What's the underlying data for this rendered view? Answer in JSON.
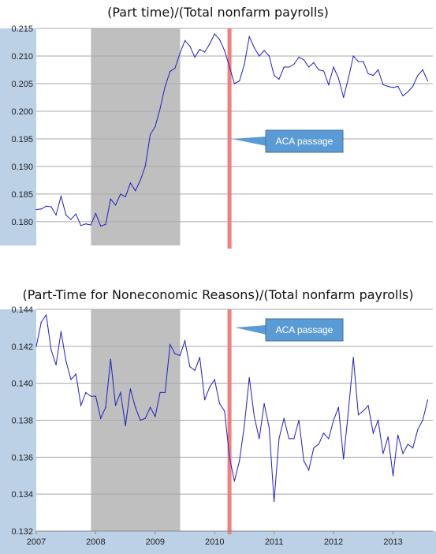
{
  "chart_data": [
    {
      "type": "line",
      "title": "(Part time)/(Total nonfarm payrolls)",
      "xlim": [
        2007.0,
        2013.67
      ],
      "ylim": [
        0.1757,
        0.215
      ],
      "yticks": [
        0.215,
        0.21,
        0.205,
        0.2,
        0.195,
        0.19,
        0.185,
        0.18
      ],
      "ytick_labels": [
        "0.215",
        "0.210",
        "0.205",
        "0.200",
        "0.195",
        "0.190",
        "0.185",
        "0.180"
      ],
      "grid": true,
      "recession_shading": [
        2007.92,
        2009.42
      ],
      "vline": 2010.25,
      "annotation": "ACA passage",
      "line_color": "#1f1fbf",
      "shade_color": "#bfbfbf",
      "vline_color": "#f08080",
      "x": [
        2007.0,
        2007.083,
        2007.167,
        2007.25,
        2007.333,
        2007.417,
        2007.5,
        2007.583,
        2007.667,
        2007.75,
        2007.833,
        2007.917,
        2008.0,
        2008.083,
        2008.167,
        2008.25,
        2008.333,
        2008.417,
        2008.5,
        2008.583,
        2008.667,
        2008.75,
        2008.833,
        2008.917,
        2009.0,
        2009.083,
        2009.167,
        2009.25,
        2009.333,
        2009.417,
        2009.5,
        2009.583,
        2009.667,
        2009.75,
        2009.833,
        2009.917,
        2010.0,
        2010.083,
        2010.167,
        2010.25,
        2010.333,
        2010.417,
        2010.5,
        2010.583,
        2010.667,
        2010.75,
        2010.833,
        2010.917,
        2011.0,
        2011.083,
        2011.167,
        2011.25,
        2011.333,
        2011.417,
        2011.5,
        2011.583,
        2011.667,
        2011.75,
        2011.833,
        2011.917,
        2012.0,
        2012.083,
        2012.167,
        2012.25,
        2012.333,
        2012.417,
        2012.5,
        2012.583,
        2012.667,
        2012.75,
        2012.833,
        2012.917,
        2013.0,
        2013.083,
        2013.167,
        2013.25,
        2013.333,
        2013.417,
        2013.5,
        2013.583
      ],
      "y": [
        0.1822,
        0.1823,
        0.1828,
        0.1827,
        0.1812,
        0.1846,
        0.1812,
        0.1804,
        0.1814,
        0.1793,
        0.1796,
        0.1794,
        0.1815,
        0.1792,
        0.1795,
        0.1841,
        0.183,
        0.185,
        0.1845,
        0.187,
        0.1856,
        0.1875,
        0.19,
        0.1958,
        0.1972,
        0.2005,
        0.2045,
        0.2072,
        0.2078,
        0.2105,
        0.2128,
        0.2118,
        0.2098,
        0.2112,
        0.2107,
        0.2122,
        0.214,
        0.213,
        0.211,
        0.208,
        0.205,
        0.2055,
        0.2085,
        0.2135,
        0.2115,
        0.21,
        0.211,
        0.21,
        0.2065,
        0.2058,
        0.208,
        0.208,
        0.2085,
        0.2098,
        0.2093,
        0.208,
        0.2088,
        0.2075,
        0.2073,
        0.2048,
        0.208,
        0.206,
        0.2025,
        0.206,
        0.21,
        0.209,
        0.209,
        0.2068,
        0.2065,
        0.2075,
        0.2048,
        0.2045,
        0.2043,
        0.2045,
        0.2028,
        0.2035,
        0.2045,
        0.2065,
        0.2075,
        0.2055
      ]
    },
    {
      "type": "line",
      "title": "(Part-Time for Noneconomic Reasons)/(Total nonfarm payrolls)",
      "xlim": [
        2007.0,
        2013.67
      ],
      "ylim": [
        0.132,
        0.144
      ],
      "yticks": [
        0.144,
        0.142,
        0.14,
        0.138,
        0.136,
        0.134,
        0.132
      ],
      "ytick_labels": [
        "0.144",
        "0.142",
        "0.140",
        "0.138",
        "0.136",
        "0.134",
        "0.132"
      ],
      "xticks": [
        2007,
        2008,
        2009,
        2010,
        2011,
        2012,
        2013
      ],
      "xtick_labels": [
        "2007",
        "2008",
        "2009",
        "2010",
        "2011",
        "2012",
        "2013"
      ],
      "grid": true,
      "recession_shading": [
        2007.92,
        2009.42
      ],
      "vline": 2010.25,
      "annotation": "ACA passage",
      "line_color": "#1f1fbf",
      "shade_color": "#bfbfbf",
      "vline_color": "#f08080",
      "x": [
        2007.0,
        2007.083,
        2007.167,
        2007.25,
        2007.333,
        2007.417,
        2007.5,
        2007.583,
        2007.667,
        2007.75,
        2007.833,
        2007.917,
        2008.0,
        2008.083,
        2008.167,
        2008.25,
        2008.333,
        2008.417,
        2008.5,
        2008.583,
        2008.667,
        2008.75,
        2008.833,
        2008.917,
        2009.0,
        2009.083,
        2009.167,
        2009.25,
        2009.333,
        2009.417,
        2009.5,
        2009.583,
        2009.667,
        2009.75,
        2009.833,
        2009.917,
        2010.0,
        2010.083,
        2010.167,
        2010.25,
        2010.333,
        2010.417,
        2010.5,
        2010.583,
        2010.667,
        2010.75,
        2010.833,
        2010.917,
        2011.0,
        2011.083,
        2011.167,
        2011.25,
        2011.333,
        2011.417,
        2011.5,
        2011.583,
        2011.667,
        2011.75,
        2011.833,
        2011.917,
        2012.0,
        2012.083,
        2012.167,
        2012.25,
        2012.333,
        2012.417,
        2012.5,
        2012.583,
        2012.667,
        2012.75,
        2012.833,
        2012.917,
        2013.0,
        2013.083,
        2013.167,
        2013.25,
        2013.333,
        2013.417,
        2013.5,
        2013.583
      ],
      "y": [
        0.142,
        0.1433,
        0.1437,
        0.1418,
        0.141,
        0.1428,
        0.1412,
        0.1402,
        0.1405,
        0.1388,
        0.1395,
        0.1393,
        0.1393,
        0.1381,
        0.1387,
        0.1413,
        0.1388,
        0.1395,
        0.1377,
        0.1397,
        0.1387,
        0.138,
        0.1381,
        0.1387,
        0.1382,
        0.1395,
        0.1395,
        0.1421,
        0.1416,
        0.1415,
        0.1423,
        0.1409,
        0.1407,
        0.1414,
        0.1391,
        0.1398,
        0.1402,
        0.1389,
        0.1385,
        0.136,
        0.1347,
        0.1358,
        0.1377,
        0.1403,
        0.1382,
        0.137,
        0.1389,
        0.1376,
        0.1336,
        0.137,
        0.1381,
        0.137,
        0.137,
        0.138,
        0.1358,
        0.1353,
        0.1365,
        0.1367,
        0.1373,
        0.137,
        0.138,
        0.1387,
        0.1359,
        0.1385,
        0.1414,
        0.1383,
        0.1385,
        0.1388,
        0.1373,
        0.138,
        0.1362,
        0.1371,
        0.135,
        0.1372,
        0.1362,
        0.1367,
        0.1365,
        0.1375,
        0.138,
        0.1391
      ]
    }
  ]
}
